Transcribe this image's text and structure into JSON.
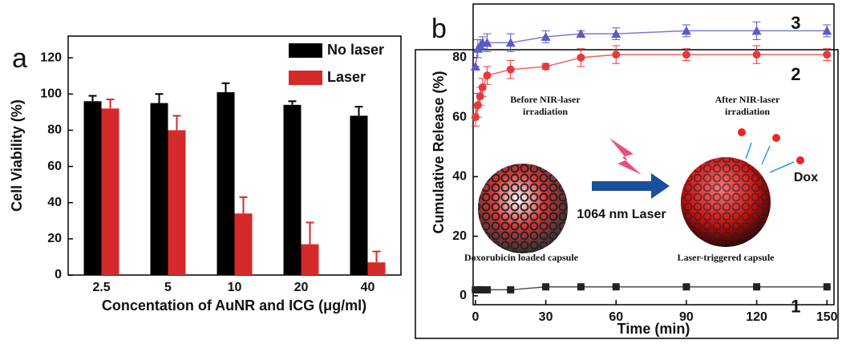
{
  "chart_data": [
    {
      "type": "bar",
      "panel_label": "a",
      "xlabel": "Concentation of AuNR and ICG (μg/ml)",
      "ylabel": "Cell Viability (%)",
      "categories": [
        "2.5",
        "5",
        "10",
        "20",
        "40"
      ],
      "series": [
        {
          "name": "No laser",
          "color": "#000000",
          "values": [
            96,
            95,
            101,
            94,
            88
          ],
          "errors": [
            3,
            5,
            5,
            2,
            5
          ]
        },
        {
          "name": "Laser",
          "color": "#d42a2a",
          "values": [
            92,
            80,
            34,
            17,
            7
          ],
          "errors": [
            5,
            8,
            9,
            12,
            6
          ]
        }
      ],
      "ylim": [
        0,
        132
      ],
      "yticks": [
        0,
        20,
        40,
        60,
        80,
        100,
        120
      ],
      "legend": "top-right"
    },
    {
      "type": "line",
      "panel_label": "b",
      "xlabel": "Time (min)",
      "ylabel": "Cumulative Release (%)",
      "x": [
        0,
        1,
        2,
        3,
        5,
        15,
        30,
        45,
        60,
        90,
        120,
        150
      ],
      "series": [
        {
          "name": "3",
          "color": "#5a5ac8",
          "marker": "triangle",
          "values": [
            77,
            83,
            84,
            85,
            85,
            85,
            87,
            88,
            88,
            89,
            89,
            89
          ],
          "errors": [
            0,
            3,
            2,
            2,
            3,
            3,
            2,
            1,
            2,
            2,
            3,
            2
          ]
        },
        {
          "name": "2",
          "color": "#e8393c",
          "marker": "circle",
          "values": [
            60,
            64,
            67,
            70,
            74,
            76,
            77,
            80,
            81,
            81,
            81,
            81
          ],
          "errors": [
            3,
            4,
            3,
            3,
            3,
            3,
            1,
            3,
            3,
            2,
            3,
            2
          ]
        },
        {
          "name": "1",
          "color": "#222222",
          "marker": "square",
          "values": [
            2,
            2,
            2,
            2,
            2,
            2,
            3,
            3,
            3,
            3,
            3,
            3
          ],
          "errors": [
            0,
            0,
            0,
            0,
            0,
            0,
            0,
            0,
            0,
            0,
            0,
            0
          ]
        }
      ],
      "xlim": [
        -1,
        153
      ],
      "xticks": [
        0,
        30,
        60,
        90,
        120,
        150
      ],
      "ylim": [
        -3,
        98
      ],
      "yticks": [
        0,
        20,
        40,
        60,
        80
      ],
      "annotations": [
        "Before NIR-laser",
        "irradiation",
        "After NIR-laser",
        "irradiation",
        "1064 nm Laser",
        "Doxorubicin  loaded capsule",
        "Laser-triggered capsule",
        "Dox"
      ]
    }
  ]
}
